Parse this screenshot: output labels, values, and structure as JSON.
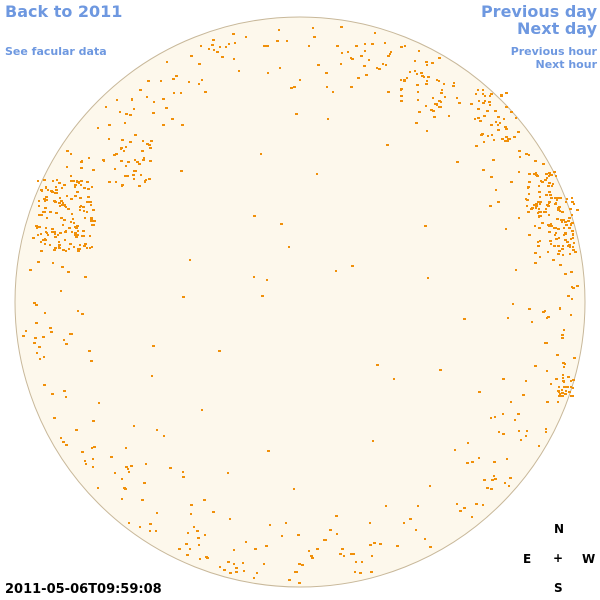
{
  "header": {
    "back_link": "Back to 2011",
    "facular_link": "See facular data",
    "previous_day": "Previous day",
    "next_day": "Next day",
    "previous_hour": "Previous hour",
    "next_hour": "Next hour"
  },
  "timestamp": "2011-05-06T09:59:08",
  "compass": {
    "north": "N",
    "east": "E",
    "center": "+",
    "west": "W",
    "south": "S"
  }
}
